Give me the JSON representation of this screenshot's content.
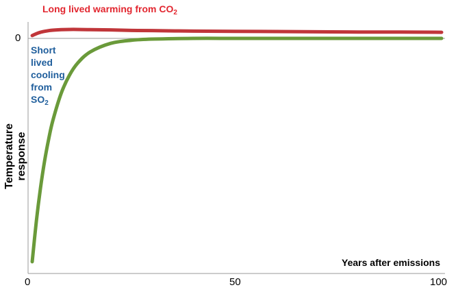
{
  "chart_data": {
    "type": "line",
    "title": "",
    "xlabel": "Years after emissions",
    "ylabel": "Temperature response",
    "xlim": [
      0,
      100
    ],
    "ylim": [
      -1,
      0.07
    ],
    "xticks": [
      "0",
      "50",
      "100"
    ],
    "yticks": [
      "0"
    ],
    "grid": false,
    "x": [
      1,
      2,
      3,
      4,
      5,
      6,
      8,
      10,
      12,
      15,
      20,
      25,
      30,
      40,
      50,
      60,
      70,
      80,
      90,
      100
    ],
    "series": [
      {
        "name": "Long lived warming from CO2",
        "label_main": "Long lived warming from CO",
        "label_sub": "2",
        "color": "#c0363a",
        "values": [
          0.012,
          0.02,
          0.026,
          0.03,
          0.033,
          0.035,
          0.037,
          0.038,
          0.038,
          0.037,
          0.036,
          0.034,
          0.033,
          0.031,
          0.03,
          0.029,
          0.028,
          0.027,
          0.027,
          0.026
        ]
      },
      {
        "name": "Short lived cooling from SO2",
        "label_main": "Short lived cooling from SO",
        "label_sub": "2",
        "color": "#6a9a3a",
        "values": [
          -0.95,
          -0.778,
          -0.637,
          -0.521,
          -0.427,
          -0.349,
          -0.234,
          -0.157,
          -0.105,
          -0.058,
          -0.021,
          -0.008,
          -0.003,
          0,
          0,
          0,
          0,
          0,
          0,
          0
        ]
      }
    ],
    "label_colors": {
      "co2": "#e2262f",
      "so2": "#1f5e9c"
    }
  }
}
